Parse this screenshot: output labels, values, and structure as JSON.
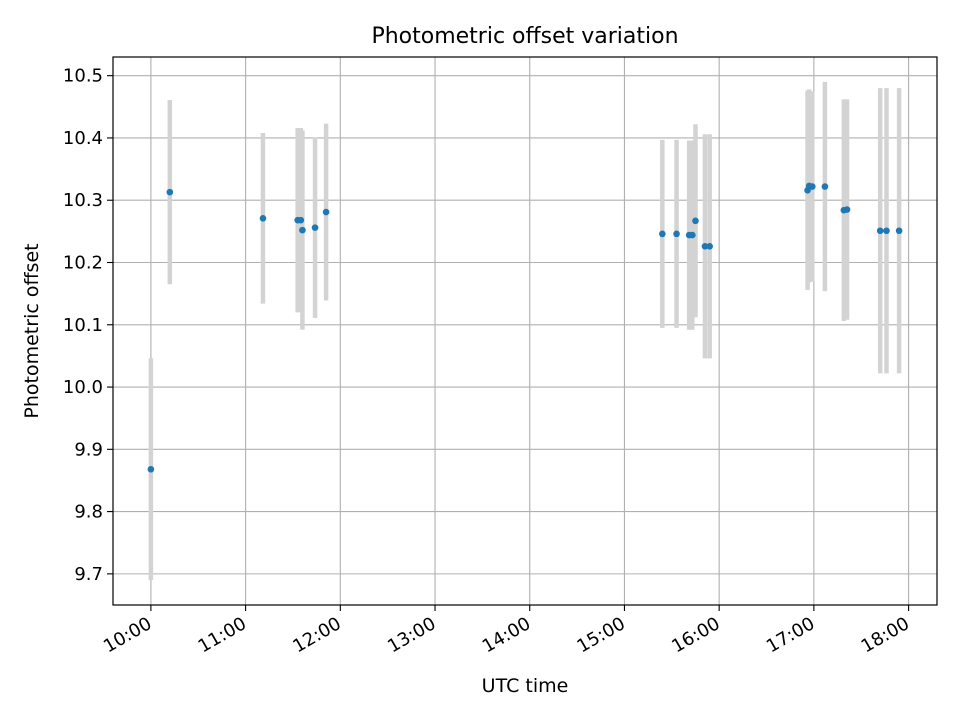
{
  "chart_data": {
    "type": "scatter",
    "title": "Photometric offset variation",
    "xlabel": "UTC time",
    "ylabel": "Photometric offset",
    "x_ticks": [
      "10:00",
      "11:00",
      "12:00",
      "13:00",
      "14:00",
      "15:00",
      "16:00",
      "17:00",
      "18:00"
    ],
    "y_ticks": [
      "9.7",
      "9.8",
      "9.9",
      "10.0",
      "10.1",
      "10.2",
      "10.3",
      "10.4",
      "10.5"
    ],
    "xlim": [
      "09:36",
      "18:18"
    ],
    "ylim": [
      9.65,
      10.53
    ],
    "grid": true,
    "point_color": "#1f77b4",
    "errorbar_color": "#d3d3d3",
    "points": [
      {
        "x": "10:00",
        "y": 9.868,
        "err": 0.178
      },
      {
        "x": "10:12",
        "y": 10.313,
        "err": 0.148
      },
      {
        "x": "11:11",
        "y": 10.271,
        "err": 0.137
      },
      {
        "x": "11:33",
        "y": 10.268,
        "err": 0.148
      },
      {
        "x": "11:35",
        "y": 10.268,
        "err": 0.148
      },
      {
        "x": "11:36",
        "y": 10.252,
        "err": 0.16
      },
      {
        "x": "11:44",
        "y": 10.256,
        "err": 0.145
      },
      {
        "x": "11:51",
        "y": 10.281,
        "err": 0.142
      },
      {
        "x": "15:24",
        "y": 10.246,
        "err": 0.151
      },
      {
        "x": "15:33",
        "y": 10.246,
        "err": 0.151
      },
      {
        "x": "15:41",
        "y": 10.244,
        "err": 0.152
      },
      {
        "x": "15:43",
        "y": 10.244,
        "err": 0.152
      },
      {
        "x": "15:45",
        "y": 10.267,
        "err": 0.155
      },
      {
        "x": "15:51",
        "y": 10.226,
        "err": 0.18
      },
      {
        "x": "15:54",
        "y": 10.226,
        "err": 0.18
      },
      {
        "x": "16:56",
        "y": 10.316,
        "err": 0.16
      },
      {
        "x": "16:57",
        "y": 10.323,
        "err": 0.155
      },
      {
        "x": "16:59",
        "y": 10.322,
        "err": 0.153
      },
      {
        "x": "17:07",
        "y": 10.322,
        "err": 0.168
      },
      {
        "x": "17:19",
        "y": 10.284,
        "err": 0.178
      },
      {
        "x": "17:21",
        "y": 10.285,
        "err": 0.177
      },
      {
        "x": "17:42",
        "y": 10.251,
        "err": 0.229
      },
      {
        "x": "17:46",
        "y": 10.251,
        "err": 0.229
      },
      {
        "x": "17:54",
        "y": 10.251,
        "err": 0.229
      }
    ]
  }
}
